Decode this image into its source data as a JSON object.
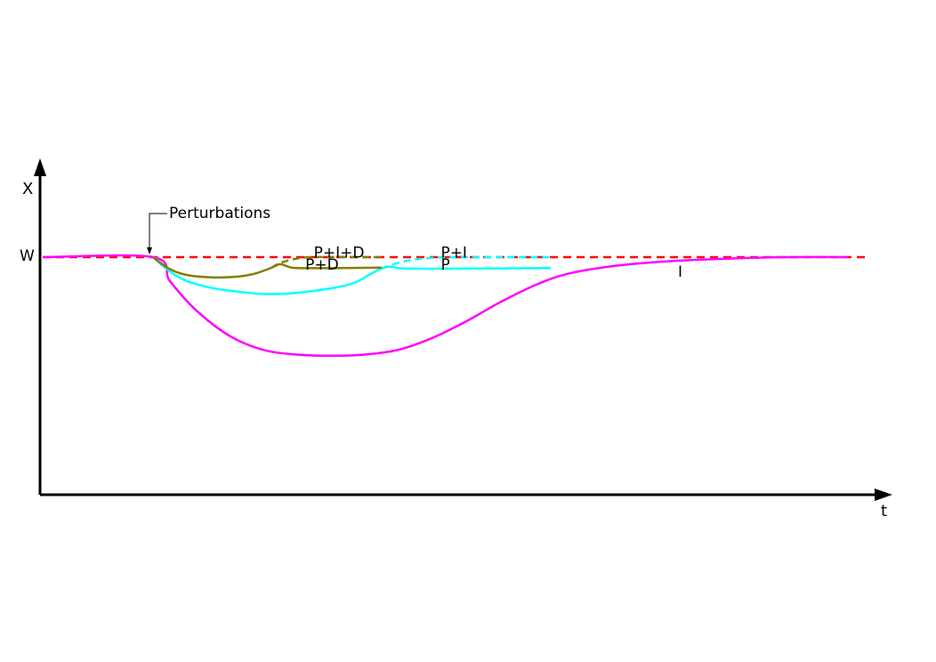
{
  "chart_data": {
    "type": "line",
    "title": "",
    "xlabel": "t",
    "ylabel": "X",
    "xlim": [
      0,
      100
    ],
    "ylim": [
      0,
      100
    ],
    "grid": false,
    "legend": "none",
    "setpoint": {
      "label": "W",
      "y": 100,
      "color": "#ff0000",
      "style": "dashed"
    },
    "annotations": [
      {
        "text": "Perturbations",
        "x": 13,
        "y": 100
      }
    ],
    "series": [
      {
        "name": "I",
        "color": "#ff00ff",
        "style": "solid",
        "points": [
          [
            0,
            100
          ],
          [
            13,
            100
          ],
          [
            15,
            90
          ],
          [
            18,
            78
          ],
          [
            22,
            67
          ],
          [
            26,
            61
          ],
          [
            30,
            59
          ],
          [
            34,
            58.5
          ],
          [
            38,
            59
          ],
          [
            42,
            61
          ],
          [
            46,
            66
          ],
          [
            50,
            73
          ],
          [
            54,
            81
          ],
          [
            58,
            88
          ],
          [
            62,
            93
          ],
          [
            68,
            96.5
          ],
          [
            75,
            98.5
          ],
          [
            82,
            99.5
          ],
          [
            88,
            100
          ],
          [
            95,
            100
          ]
        ]
      },
      {
        "name": "P",
        "color": "#00ffff",
        "style": "solid",
        "points": [
          [
            13,
            100
          ],
          [
            15,
            94
          ],
          [
            17,
            90
          ],
          [
            20,
            87
          ],
          [
            23,
            85.5
          ],
          [
            26,
            84.5
          ],
          [
            29,
            84.7
          ],
          [
            32,
            85.8
          ],
          [
            35,
            87.5
          ],
          [
            37,
            89.5
          ],
          [
            38.5,
            92.5
          ],
          [
            40,
            95.2
          ],
          [
            41,
            96
          ],
          [
            43,
            95.2
          ],
          [
            50,
            95.2
          ],
          [
            60,
            95.4
          ]
        ]
      },
      {
        "name": "P+I",
        "color": "#00ffff",
        "style": "dashed",
        "points": [
          [
            40,
            95.2
          ],
          [
            41,
            96.5
          ],
          [
            43,
            98.5
          ],
          [
            46,
            99.7
          ],
          [
            50,
            100
          ],
          [
            60,
            100
          ]
        ]
      },
      {
        "name": "P+D",
        "color": "#808000",
        "style": "solid",
        "points": [
          [
            13,
            100
          ],
          [
            15,
            95
          ],
          [
            17,
            92.5
          ],
          [
            20,
            91.5
          ],
          [
            23,
            91.8
          ],
          [
            25,
            93
          ],
          [
            27,
            95.5
          ],
          [
            28,
            97
          ],
          [
            29,
            96
          ],
          [
            30,
            95.4
          ],
          [
            35,
            95.4
          ],
          [
            40,
            95.6
          ]
        ]
      },
      {
        "name": "P+I+D",
        "color": "#808000",
        "style": "dashed",
        "points": [
          [
            27,
            95.5
          ],
          [
            28,
            97.5
          ],
          [
            30,
            99.4
          ],
          [
            32,
            100
          ],
          [
            40,
            100
          ]
        ]
      }
    ],
    "series_labels": [
      {
        "text": "P+I+D",
        "x": 32,
        "y": 102
      },
      {
        "text": "P+D",
        "x": 31,
        "y": 97
      },
      {
        "text": "P+I",
        "x": 47,
        "y": 102
      },
      {
        "text": "P",
        "x": 47,
        "y": 97
      },
      {
        "text": "I",
        "x": 75,
        "y": 94
      }
    ]
  }
}
